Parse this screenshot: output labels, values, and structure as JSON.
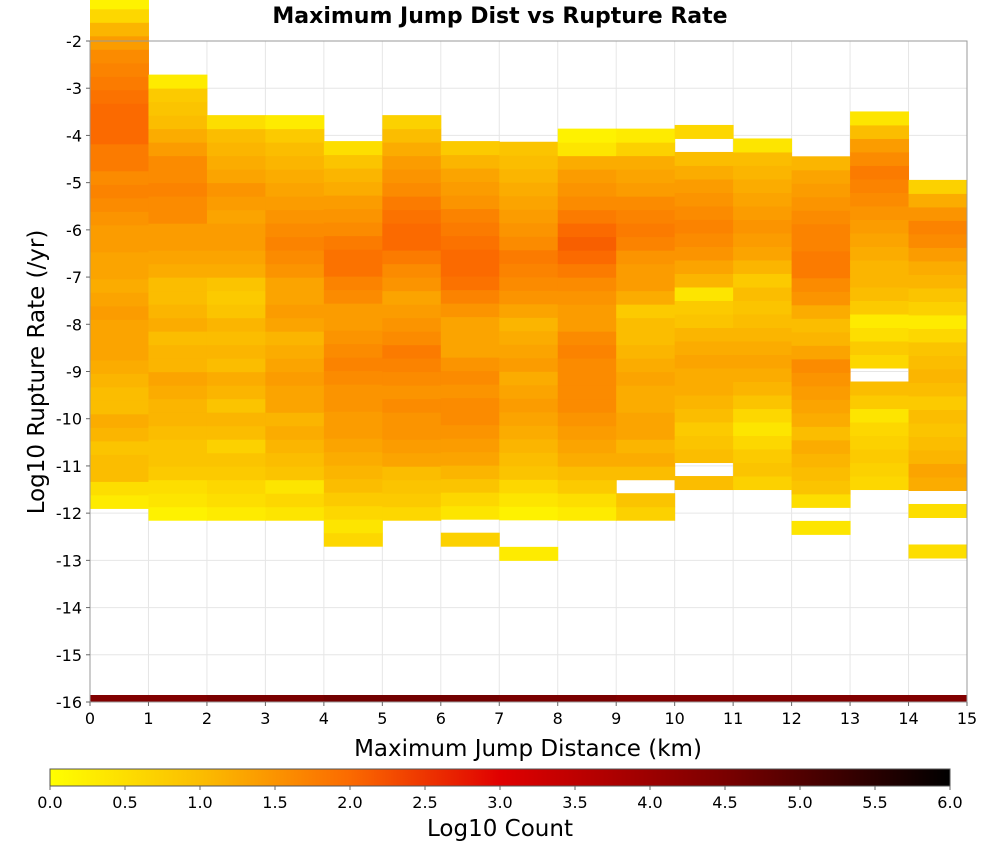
{
  "chart_data": {
    "type": "heatmap",
    "title": "Maximum Jump Dist vs Rupture Rate",
    "xlabel": "Maximum Jump Distance (km)",
    "ylabel": "Log10 Rupture Rate (/yr)",
    "xlim": [
      0,
      15
    ],
    "ylim": [
      -16,
      -2
    ],
    "x_ticks": [
      "0",
      "1",
      "2",
      "3",
      "4",
      "5",
      "6",
      "7",
      "8",
      "9",
      "10",
      "11",
      "12",
      "13",
      "14",
      "15"
    ],
    "y_ticks": [
      "-2",
      "-3",
      "-4",
      "-5",
      "-6",
      "-7",
      "-8",
      "-9",
      "-10",
      "-11",
      "-12",
      "-13",
      "-14",
      "-15",
      "-16"
    ],
    "grid": true,
    "x_bin_width": 1,
    "y_bin_height": 0.286,
    "colorbar": {
      "label": "Log10 Count",
      "range": [
        0,
        6
      ],
      "ticks": [
        "0.0",
        "0.5",
        "1.0",
        "1.5",
        "2.0",
        "2.5",
        "3.0",
        "3.5",
        "4.0",
        "4.5",
        "5.0",
        "5.5",
        "6.0"
      ],
      "stops": [
        {
          "value": 0.0,
          "color": "#ffff00"
        },
        {
          "value": 1.0,
          "color": "#fbbd00"
        },
        {
          "value": 2.0,
          "color": "#fb6a00"
        },
        {
          "value": 3.0,
          "color": "#e00000"
        },
        {
          "value": 4.5,
          "color": "#7a0000"
        },
        {
          "value": 6.0,
          "color": "#000000"
        }
      ]
    },
    "total_row": {
      "y": -16,
      "values": [
        4.4,
        4.4,
        4.5,
        4.5,
        4.6,
        4.6,
        4.6,
        4.5,
        4.5,
        4.4,
        4.4,
        4.4,
        4.4,
        4.4,
        4.4
      ]
    },
    "columns": [
      {
        "x": 0,
        "y_start": -11.9,
        "values": [
          0.3,
          0.5,
          1.0,
          1.0,
          0.9,
          1.1,
          1.2,
          1.0,
          1.0,
          1.1,
          1.2,
          1.3,
          1.3,
          1.3,
          1.4,
          1.3,
          1.2,
          1.3,
          1.3,
          1.4,
          1.4,
          1.5,
          1.6,
          1.7,
          1.6,
          1.8,
          1.8,
          2.0,
          2.0,
          2.0,
          1.9,
          1.8,
          1.7,
          1.6,
          1.4,
          1.1,
          0.6,
          0.2
        ]
      },
      {
        "x": 1,
        "y_start": -12.15,
        "values": [
          0.2,
          0.4,
          0.5,
          0.8,
          0.9,
          0.9,
          1.0,
          1.1,
          1.1,
          1.2,
          1.3,
          1.1,
          1.1,
          1.0,
          1.2,
          1.1,
          1.0,
          1.0,
          1.2,
          1.3,
          1.4,
          1.4,
          1.6,
          1.6,
          1.7,
          1.6,
          1.6,
          1.4,
          1.2,
          1.0,
          0.9,
          0.8,
          0.3
        ]
      },
      {
        "x": 2,
        "y_start": -12.15,
        "values": [
          0.3,
          0.5,
          0.6,
          0.8,
          0.9,
          0.7,
          1.0,
          1.1,
          0.9,
          1.1,
          1.2,
          1.0,
          1.1,
          1.0,
          1.1,
          0.9,
          0.8,
          0.9,
          1.2,
          1.3,
          1.4,
          1.4,
          1.3,
          1.4,
          1.5,
          1.3,
          1.2,
          1.1,
          1.0,
          0.5
        ]
      },
      {
        "x": 3,
        "y_start": -12.15,
        "values": [
          0.4,
          0.6,
          0.4,
          0.9,
          1.0,
          1.1,
          1.2,
          1.1,
          1.3,
          1.3,
          1.4,
          1.3,
          1.2,
          1.1,
          1.3,
          1.4,
          1.3,
          1.3,
          1.5,
          1.6,
          1.7,
          1.6,
          1.5,
          1.4,
          1.3,
          1.2,
          1.1,
          1.0,
          0.8,
          0.3
        ]
      },
      {
        "x": 4,
        "y_start": -12.7,
        "values": [
          0.6,
          0.4,
          0.6,
          0.8,
          1.0,
          1.1,
          1.2,
          1.3,
          1.4,
          1.4,
          1.5,
          1.5,
          1.6,
          1.7,
          1.6,
          1.5,
          1.4,
          1.4,
          1.6,
          1.7,
          1.9,
          1.9,
          1.8,
          1.6,
          1.5,
          1.4,
          1.2,
          1.1,
          0.9,
          0.5
        ]
      },
      {
        "x": 5,
        "y_start": -12.15,
        "values": [
          0.6,
          0.8,
          0.9,
          1.0,
          1.3,
          1.4,
          1.5,
          1.5,
          1.6,
          1.5,
          1.6,
          1.7,
          1.8,
          1.6,
          1.5,
          1.4,
          1.3,
          1.5,
          1.6,
          1.8,
          2.0,
          2.0,
          1.9,
          1.8,
          1.6,
          1.5,
          1.4,
          1.2,
          1.0,
          0.7
        ]
      },
      {
        "x": 6,
        "y_start": -12.7,
        "values": [
          0.7,
          0.0,
          0.4,
          0.6,
          0.9,
          1.1,
          1.3,
          1.4,
          1.5,
          1.6,
          1.6,
          1.5,
          1.6,
          1.5,
          1.3,
          1.3,
          1.3,
          1.5,
          1.7,
          1.9,
          2.0,
          2.0,
          1.9,
          1.8,
          1.7,
          1.5,
          1.4,
          1.3,
          1.1,
          0.8
        ]
      },
      {
        "x": 7,
        "y_start": -13.0,
        "values": [
          0.3,
          0.0,
          0.0,
          0.2,
          0.4,
          0.6,
          0.9,
          1.0,
          1.1,
          1.2,
          1.3,
          1.4,
          1.3,
          1.2,
          1.4,
          1.3,
          1.2,
          1.1,
          1.3,
          1.5,
          1.6,
          1.7,
          1.8,
          1.6,
          1.5,
          1.4,
          1.3,
          1.2,
          1.1,
          1.0,
          0.9
        ]
      },
      {
        "x": 8,
        "y_start": -12.15,
        "values": [
          0.3,
          0.5,
          0.8,
          1.0,
          1.2,
          1.3,
          1.4,
          1.5,
          1.6,
          1.6,
          1.6,
          1.6,
          1.7,
          1.6,
          1.4,
          1.4,
          1.5,
          1.6,
          1.8,
          2.0,
          2.1,
          2.0,
          1.8,
          1.6,
          1.5,
          1.4,
          1.2,
          0.4,
          0.2
        ]
      },
      {
        "x": 9,
        "y_start": -12.15,
        "values": [
          0.7,
          0.9,
          0.0,
          1.0,
          1.2,
          1.1,
          1.3,
          1.3,
          1.2,
          1.2,
          1.3,
          1.2,
          1.1,
          1.0,
          1.0,
          0.8,
          1.2,
          1.4,
          1.4,
          1.5,
          1.7,
          1.8,
          1.7,
          1.6,
          1.4,
          1.3,
          1.2,
          0.7,
          0.3
        ]
      },
      {
        "x": 10,
        "y_start": -11.5,
        "values": [
          1.0,
          0.0,
          1.0,
          0.9,
          0.8,
          1.0,
          1.1,
          1.2,
          1.2,
          1.3,
          1.2,
          1.1,
          0.9,
          0.8,
          0.4,
          1.1,
          1.3,
          1.5,
          1.6,
          1.7,
          1.6,
          1.5,
          1.4,
          1.2,
          1.0,
          0.0,
          0.6
        ]
      },
      {
        "x": 11,
        "y_start": -11.5,
        "values": [
          0.7,
          0.9,
          0.8,
          0.6,
          0.4,
          0.6,
          0.9,
          1.1,
          1.2,
          1.3,
          1.2,
          1.1,
          1.0,
          0.9,
          1.0,
          0.8,
          1.1,
          1.3,
          1.4,
          1.5,
          1.4,
          1.3,
          1.2,
          1.1,
          1.0,
          0.4
        ]
      },
      {
        "x": 12,
        "y_start": -12.45,
        "values": [
          0.4,
          0.0,
          0.5,
          0.9,
          1.0,
          1.1,
          1.2,
          1.0,
          1.2,
          1.3,
          1.4,
          1.5,
          1.6,
          1.3,
          1.1,
          1.0,
          1.2,
          1.5,
          1.6,
          1.8,
          1.8,
          1.7,
          1.7,
          1.6,
          1.5,
          1.4,
          1.3,
          1.1
        ]
      },
      {
        "x": 13,
        "y_start": -11.5,
        "values": [
          0.6,
          0.7,
          0.8,
          0.7,
          0.6,
          0.4,
          0.8,
          1.0,
          0.0,
          0.6,
          0.8,
          0.5,
          0.3,
          0.8,
          1.0,
          1.1,
          1.1,
          1.2,
          1.3,
          1.4,
          1.5,
          1.6,
          1.7,
          1.8,
          1.6,
          1.4,
          1.0,
          0.4
        ]
      },
      {
        "x": 14,
        "y_start": -12.95,
        "values": [
          0.5,
          0.0,
          0.0,
          0.5,
          0.0,
          1.2,
          1.3,
          1.1,
          1.0,
          0.9,
          1.0,
          0.8,
          1.0,
          1.1,
          1.0,
          0.9,
          0.6,
          0.3,
          0.7,
          0.9,
          1.1,
          1.2,
          1.4,
          1.6,
          1.7,
          1.5,
          1.2,
          0.7
        ]
      }
    ]
  }
}
